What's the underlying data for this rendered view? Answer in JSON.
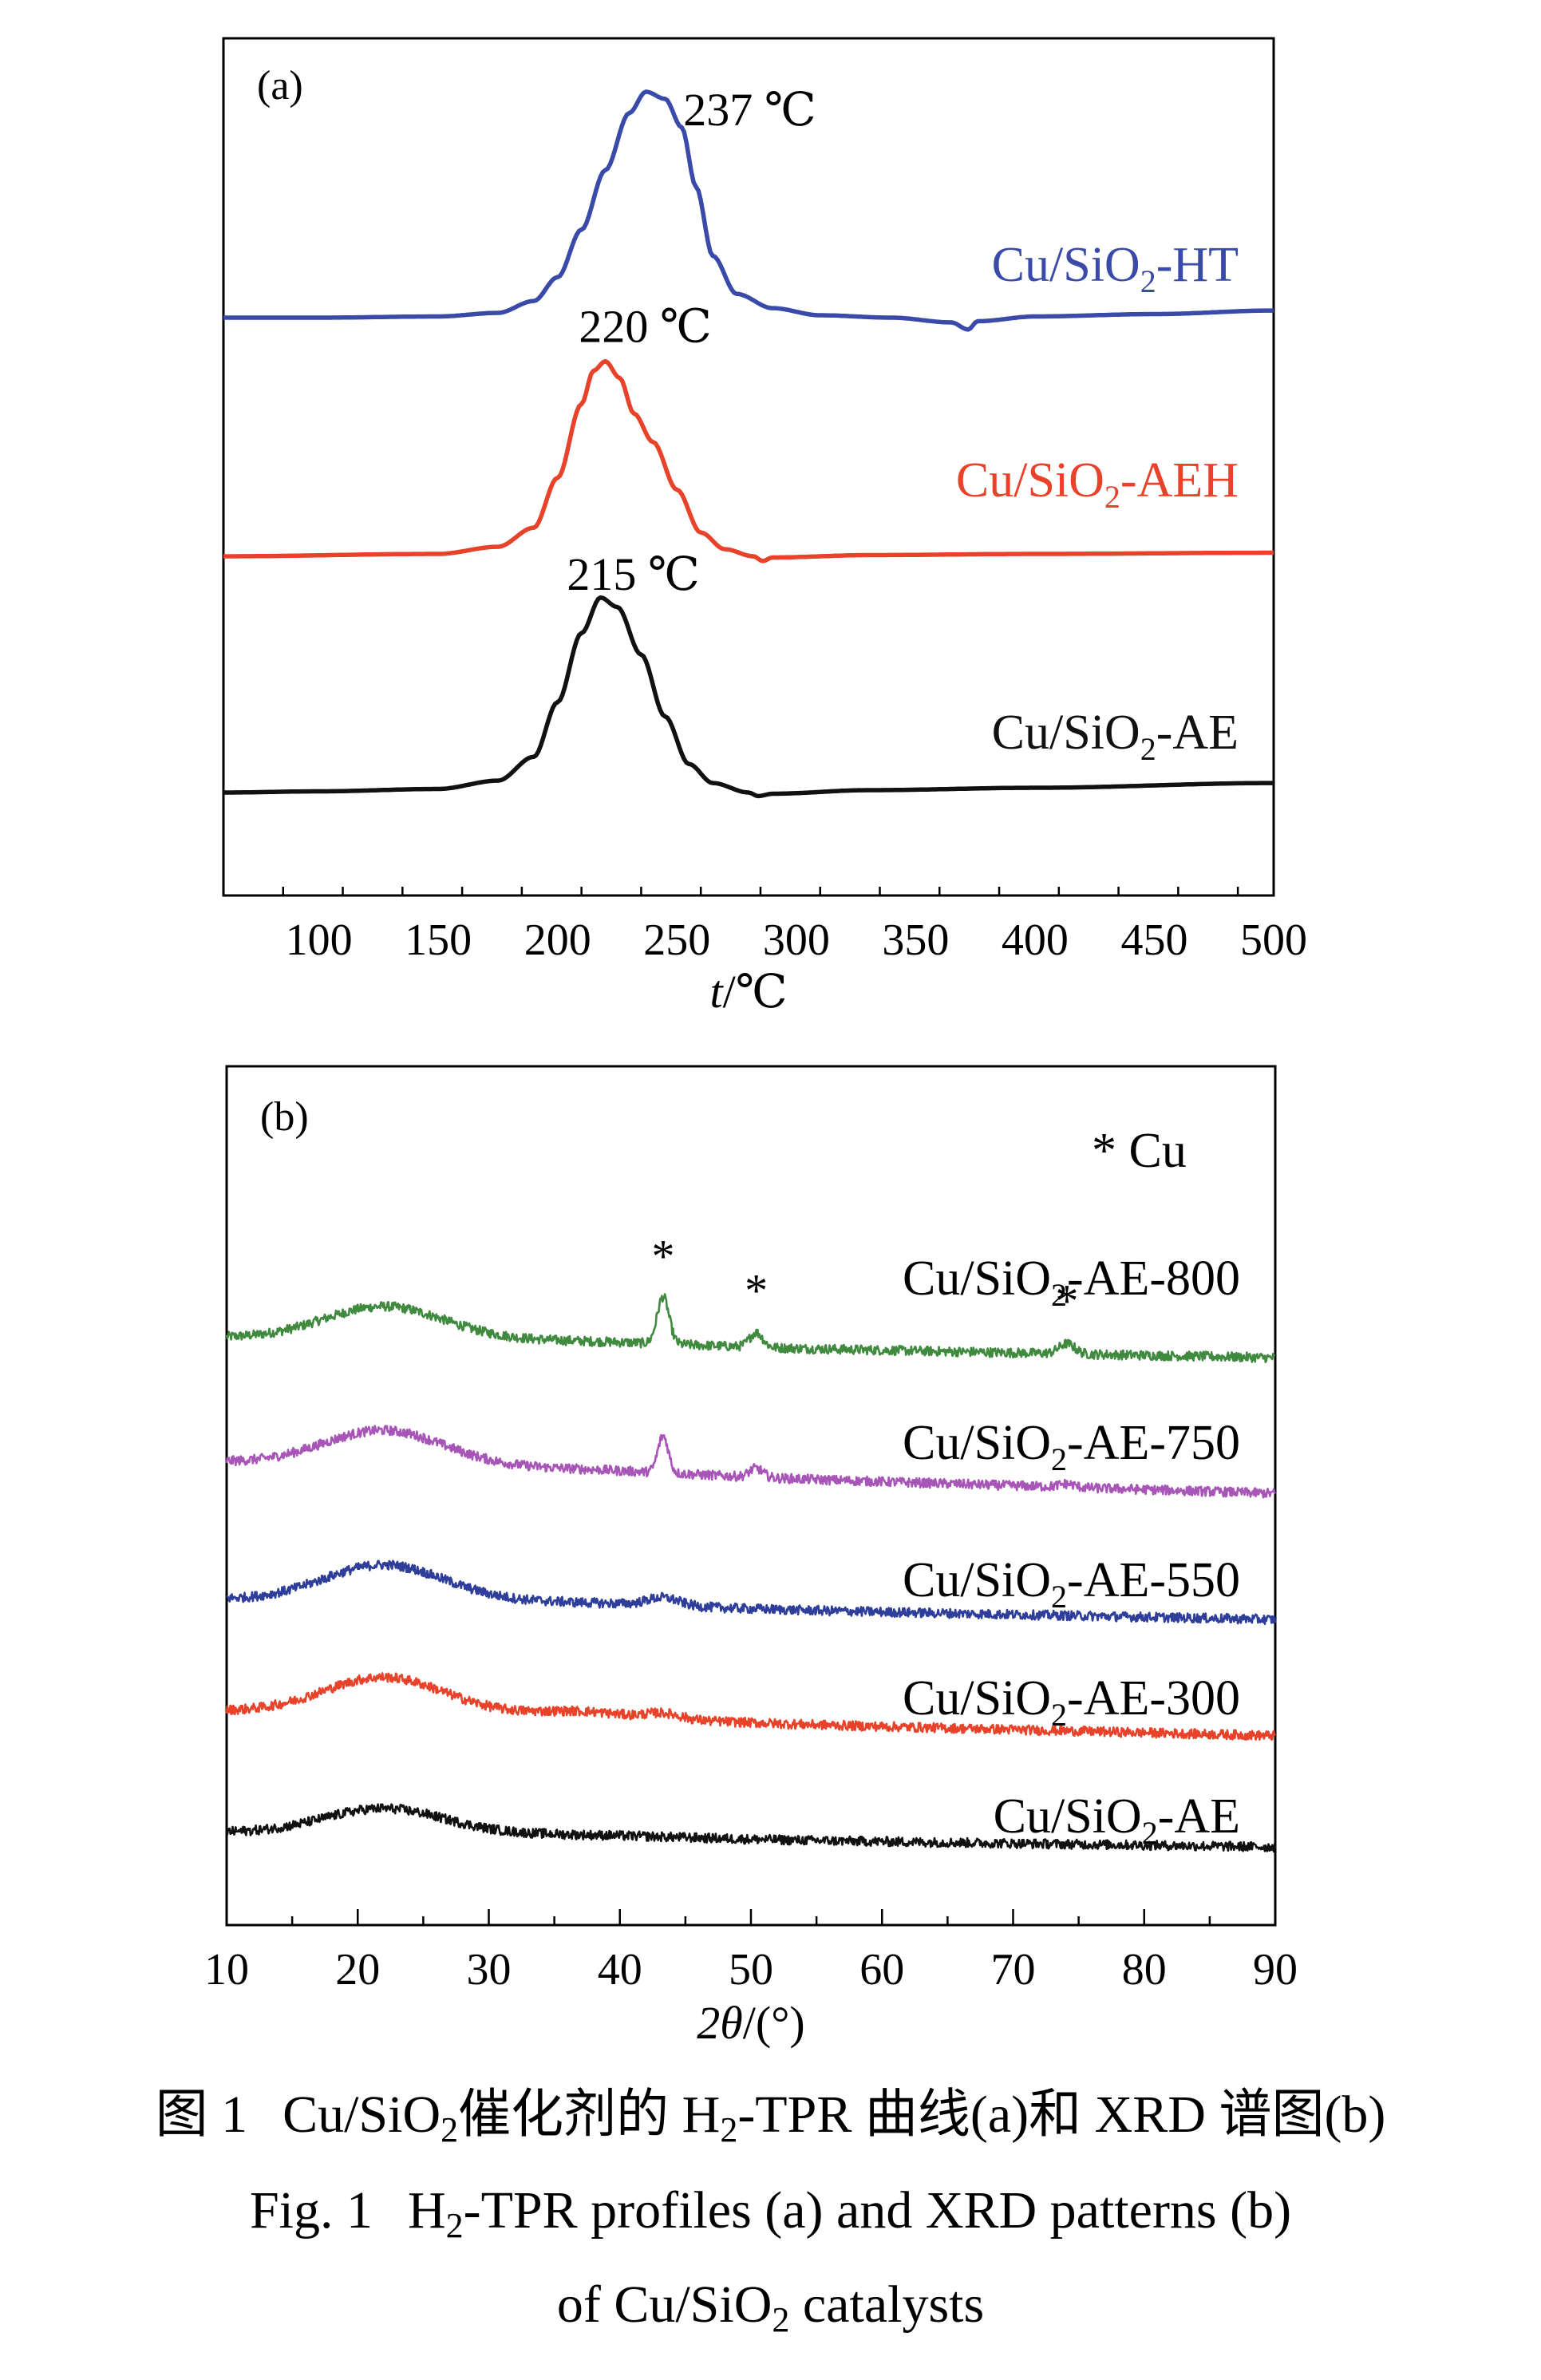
{
  "chart_data": [
    {
      "type": "line",
      "panel_label": "(a)",
      "xlabel_italic": "t",
      "xlabel_rest": "/℃",
      "xlim": [
        60,
        500
      ],
      "xticks": [
        100,
        150,
        200,
        250,
        300,
        350,
        400,
        450,
        500
      ],
      "series": [
        {
          "name": "Cu/SiO2-HT",
          "label_main": "Cu/SiO",
          "label_sub": "2",
          "label_tail": "-HT",
          "color": "#3a4aa8",
          "peak_label": "237 ℃",
          "peak_x": 237,
          "profile": [
            [
              60,
              0.0
            ],
            [
              100,
              0.0
            ],
            [
              150,
              0.005
            ],
            [
              175,
              0.02
            ],
            [
              190,
              0.07
            ],
            [
              200,
              0.17
            ],
            [
              210,
              0.37
            ],
            [
              220,
              0.62
            ],
            [
              230,
              0.86
            ],
            [
              237,
              0.95
            ],
            [
              245,
              0.92
            ],
            [
              252,
              0.8
            ],
            [
              258,
              0.55
            ],
            [
              265,
              0.26
            ],
            [
              275,
              0.1
            ],
            [
              290,
              0.04
            ],
            [
              310,
              0.01
            ],
            [
              340,
              0.0
            ],
            [
              365,
              -0.02
            ],
            [
              372,
              -0.05
            ],
            [
              376,
              -0.015
            ],
            [
              400,
              0.005
            ],
            [
              450,
              0.015
            ],
            [
              500,
              0.03
            ]
          ]
        },
        {
          "name": "Cu/SiO2-AEH",
          "label_main": "Cu/SiO",
          "label_sub": "2",
          "label_tail": "-AEH",
          "color": "#e8432a",
          "peak_label": "220 ℃",
          "peak_x": 220,
          "profile": [
            [
              60,
              0.0
            ],
            [
              150,
              0.01
            ],
            [
              175,
              0.04
            ],
            [
              190,
              0.12
            ],
            [
              200,
              0.33
            ],
            [
              210,
              0.64
            ],
            [
              215,
              0.78
            ],
            [
              220,
              0.82
            ],
            [
              226,
              0.75
            ],
            [
              232,
              0.6
            ],
            [
              240,
              0.48
            ],
            [
              250,
              0.28
            ],
            [
              260,
              0.1
            ],
            [
              270,
              0.03
            ],
            [
              282,
              0.0
            ],
            [
              286,
              -0.02
            ],
            [
              290,
              -0.005
            ],
            [
              330,
              0.005
            ],
            [
              400,
              0.01
            ],
            [
              500,
              0.015
            ]
          ]
        },
        {
          "name": "Cu/SiO2-AE",
          "label_main": "Cu/SiO",
          "label_sub": "2",
          "label_tail": "-AE",
          "color": "#111111",
          "peak_label": "215 ℃",
          "peak_x": 215,
          "profile": [
            [
              60,
              0.0
            ],
            [
              100,
              0.005
            ],
            [
              150,
              0.015
            ],
            [
              175,
              0.05
            ],
            [
              190,
              0.15
            ],
            [
              200,
              0.38
            ],
            [
              210,
              0.67
            ],
            [
              218,
              0.82
            ],
            [
              225,
              0.78
            ],
            [
              235,
              0.58
            ],
            [
              245,
              0.32
            ],
            [
              255,
              0.12
            ],
            [
              265,
              0.04
            ],
            [
              280,
              0.0
            ],
            [
              284,
              -0.015
            ],
            [
              290,
              -0.005
            ],
            [
              330,
              0.01
            ],
            [
              400,
              0.02
            ],
            [
              500,
              0.04
            ]
          ]
        }
      ]
    },
    {
      "type": "line",
      "panel_label": "(b)",
      "xlabel_italic": "2θ",
      "xlabel_rest": "/(°)",
      "xlim": [
        10,
        90
      ],
      "xticks": [
        10,
        20,
        30,
        40,
        50,
        60,
        70,
        80,
        90
      ],
      "legend_text": "* Cu",
      "peak_marker": "*",
      "series": [
        {
          "name": "Cu/SiO2-AE-800",
          "label_main": "Cu/SiO",
          "label_sub": "2",
          "label_tail": "-AE-800",
          "color": "#3f8a3f",
          "hump": 0.3,
          "peaks": [
            [
              43.3,
              0.42,
              0.45
            ],
            [
              50.4,
              0.13,
              0.5
            ],
            [
              74.1,
              0.09,
              0.6
            ]
          ],
          "stars_at": [
            43.3,
            50.4,
            74.1
          ],
          "drift": -0.18
        },
        {
          "name": "Cu/SiO2-AE-750",
          "label_main": "Cu/SiO",
          "label_sub": "2",
          "label_tail": "-AE-750",
          "color": "#a855b8",
          "hump": 0.32,
          "peaks": [
            [
              43.3,
              0.33,
              0.4
            ],
            [
              50.4,
              0.08,
              0.5
            ],
            [
              74.1,
              0.03,
              0.6
            ]
          ],
          "stars_at": [],
          "drift": -0.28
        },
        {
          "name": "Cu/SiO2-AE-550",
          "label_main": "Cu/SiO",
          "label_sub": "2",
          "label_tail": "-AE-550",
          "color": "#2e3e9a",
          "hump": 0.33,
          "peaks": [
            [
              43.3,
              0.07,
              1.2
            ]
          ],
          "stars_at": [],
          "drift": -0.18
        },
        {
          "name": "Cu/SiO2-AE-300",
          "label_main": "Cu/SiO",
          "label_sub": "2",
          "label_tail": "-AE-300",
          "color": "#e8432a",
          "hump": 0.33,
          "peaks": [
            [
              43.3,
              0.05,
              1.3
            ],
            [
              37.0,
              0.04,
              3.0
            ]
          ],
          "stars_at": [],
          "drift": -0.22
        },
        {
          "name": "Cu/SiO2-AE",
          "label_main": "Cu/SiO",
          "label_sub": "2",
          "label_tail": "-AE",
          "color": "#111111",
          "hump": 0.23,
          "peaks": [],
          "stars_at": [],
          "drift": -0.13
        }
      ]
    }
  ],
  "caption": {
    "cn_fig_no": "图 1",
    "cn_a": "Cu/SiO",
    "cn_a_sub": "2",
    "cn_b": "催化剂的 H",
    "cn_b_sub": "2",
    "cn_c": "-TPR 曲线(a)和 XRD 谱图(b)",
    "en_line1_a": "Fig. 1",
    "en_line1_b": "H",
    "en_line1_sub": "2",
    "en_line1_c": "-TPR profiles (a) and XRD patterns (b)",
    "en_line2_a": "of Cu/SiO",
    "en_line2_sub": "2",
    "en_line2_b": " catalysts"
  }
}
